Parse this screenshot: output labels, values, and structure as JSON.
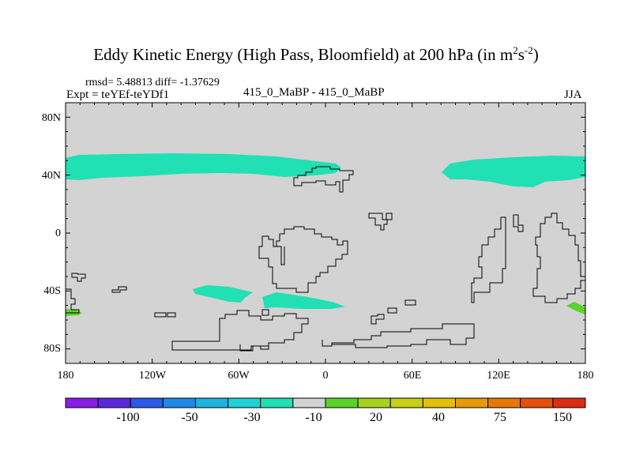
{
  "title": {
    "main": "Eddy Kinetic Energy (High Pass, Bloomfield) at 200 hPa (in m",
    "sup1": "2",
    "mid": "s",
    "sup2": "-2",
    "end": ")"
  },
  "stats": "rmsd= 5.48813 diff= -1.37629",
  "expt": "Expt = teYEf-teYDf1",
  "center_label": "415_0_MaBP - 415_0_MaBP",
  "season": "JJA",
  "map": {
    "background_color": "#d3d3d3",
    "y_ticks": [
      "80N",
      "40N",
      "0",
      "40S",
      "80S"
    ],
    "x_ticks": [
      "180",
      "120W",
      "60W",
      "0",
      "60E",
      "120E",
      "180"
    ]
  },
  "colorbar": {
    "colors": [
      "#8a1ee6",
      "#5a28dc",
      "#2c5ae6",
      "#1f8ae6",
      "#1fb2e0",
      "#1ed2d8",
      "#20e0b4",
      "#d3d3d3",
      "#5ad22a",
      "#a6d21e",
      "#c8cf14",
      "#e6bf0a",
      "#e69a0a",
      "#e6780a",
      "#e6500a",
      "#dc2d14"
    ],
    "labels": [
      "-100",
      "-50",
      "-30",
      "-10",
      "20",
      "40",
      "75",
      "150"
    ]
  }
}
